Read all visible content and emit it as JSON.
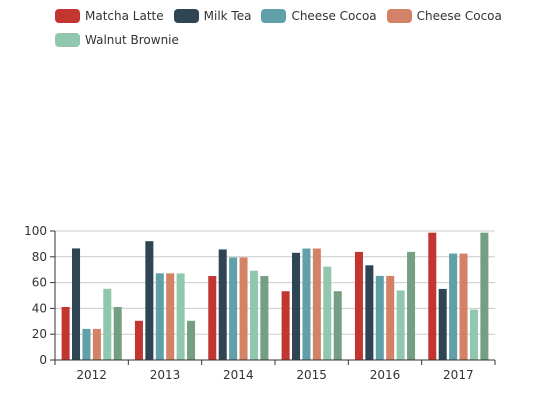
{
  "chart_data": {
    "type": "bar",
    "categories": [
      "2012",
      "2013",
      "2014",
      "2015",
      "2016",
      "2017"
    ],
    "series": [
      {
        "name": "Matcha Latte",
        "color": "#c23531",
        "values": [
          41.1,
          30.4,
          65.1,
          53.3,
          83.8,
          98.7
        ]
      },
      {
        "name": "Milk Tea",
        "color": "#2f4554",
        "values": [
          86.5,
          92.1,
          85.7,
          83.1,
          73.4,
          55.1
        ]
      },
      {
        "name": "Cheese Cocoa",
        "color": "#61a0a8",
        "values": [
          24.1,
          67.2,
          79.5,
          86.4,
          65.2,
          82.5
        ]
      },
      {
        "name": "Cheese Cocoa",
        "color": "#d48265",
        "values": [
          24.1,
          67.2,
          79.5,
          86.4,
          65.2,
          82.5
        ]
      },
      {
        "name": "Walnut Brownie",
        "color": "#91c7ae",
        "values": [
          55.2,
          67.1,
          69.2,
          72.4,
          53.9,
          39.1
        ]
      },
      {
        "name": "",
        "color": "#749f83",
        "values": [
          41.1,
          30.4,
          65.1,
          53.3,
          83.8,
          98.7
        ]
      }
    ],
    "yticks": [
      "0",
      "20",
      "40",
      "60",
      "80",
      "100"
    ],
    "ylim": [
      0,
      100
    ],
    "grid": true,
    "legend_position": "top-left"
  }
}
